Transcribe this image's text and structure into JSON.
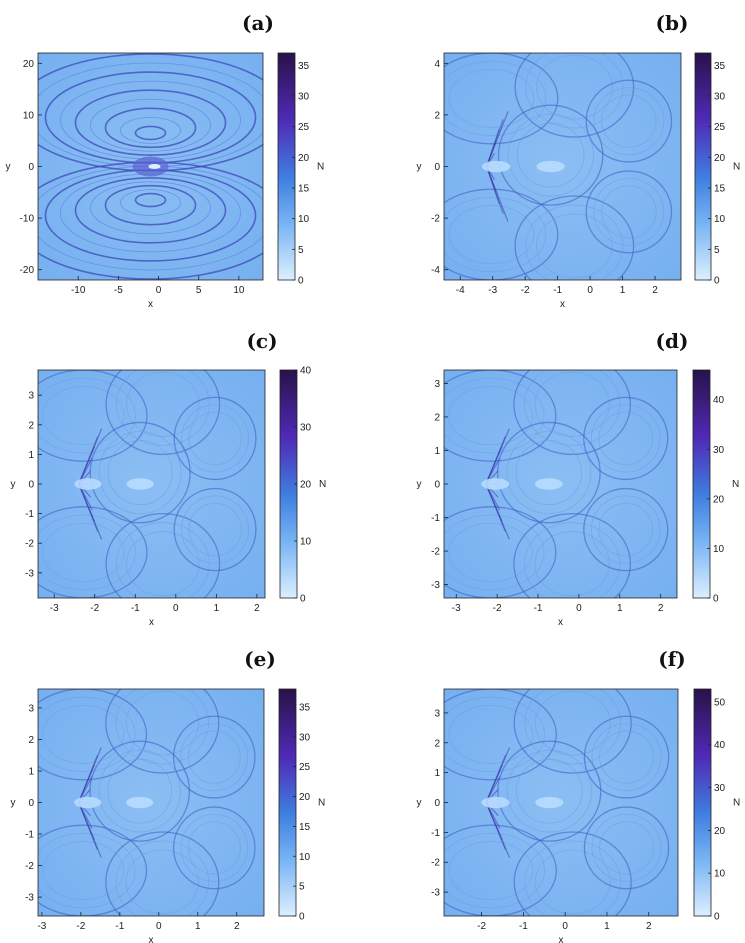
{
  "colors": {
    "cmap_low": "#dcefff",
    "cmap_mid": "#4f94ea",
    "cmap_high": "#28124a",
    "background_field": "#7db5f1"
  },
  "chart_data": [
    {
      "label": "(a)",
      "type": "heatmap",
      "xlabel": "x",
      "ylabel": "y",
      "cbar_label": "N",
      "xlim": [
        -15,
        13
      ],
      "ylim": [
        -22,
        22
      ],
      "xticks": [
        -10,
        -5,
        0,
        5,
        10
      ],
      "yticks": [
        -20,
        -10,
        0,
        10,
        20
      ],
      "cbar_lim": [
        0,
        37
      ],
      "cbar_ticks": [
        0,
        5,
        10,
        15,
        20,
        25,
        30,
        35
      ]
    },
    {
      "label": "(b)",
      "type": "heatmap",
      "xlabel": "x",
      "ylabel": "y",
      "cbar_label": "N",
      "xlim": [
        -4.5,
        2.8
      ],
      "ylim": [
        -4.4,
        4.4
      ],
      "xticks": [
        -4,
        -3,
        -2,
        -1,
        0,
        1,
        2
      ],
      "yticks": [
        -4,
        -2,
        0,
        2,
        4
      ],
      "cbar_lim": [
        0,
        37
      ],
      "cbar_ticks": [
        0,
        5,
        10,
        15,
        20,
        25,
        30,
        35
      ]
    },
    {
      "label": "(c)",
      "type": "heatmap",
      "xlabel": "x",
      "ylabel": "y",
      "cbar_label": "N",
      "xlim": [
        -3.4,
        2.2
      ],
      "ylim": [
        -3.85,
        3.85
      ],
      "xticks": [
        -3,
        -2,
        -1,
        0,
        1,
        2
      ],
      "yticks": [
        -3,
        -2,
        -1,
        0,
        1,
        2,
        3
      ],
      "cbar_lim": [
        0,
        40
      ],
      "cbar_ticks": [
        0,
        10,
        20,
        30,
        40
      ]
    },
    {
      "label": "(d)",
      "type": "heatmap",
      "xlabel": "x",
      "ylabel": "y",
      "cbar_label": "N",
      "xlim": [
        -3.3,
        2.4
      ],
      "ylim": [
        -3.4,
        3.4
      ],
      "xticks": [
        -3,
        -2,
        -1,
        0,
        1,
        2
      ],
      "yticks": [
        -3,
        -2,
        -1,
        0,
        1,
        2,
        3
      ],
      "cbar_lim": [
        0,
        46
      ],
      "cbar_ticks": [
        0,
        10,
        20,
        30,
        40
      ]
    },
    {
      "label": "(e)",
      "type": "heatmap",
      "xlabel": "x",
      "ylabel": "y",
      "cbar_label": "N",
      "xlim": [
        -3.1,
        2.7
      ],
      "ylim": [
        -3.6,
        3.6
      ],
      "xticks": [
        -3,
        -2,
        -1,
        0,
        1,
        2
      ],
      "yticks": [
        -3,
        -2,
        -1,
        0,
        1,
        2,
        3
      ],
      "cbar_lim": [
        0,
        38
      ],
      "cbar_ticks": [
        0,
        5,
        10,
        15,
        20,
        25,
        30,
        35
      ]
    },
    {
      "label": "(f)",
      "type": "heatmap",
      "xlabel": "x",
      "ylabel": "y",
      "cbar_label": "N",
      "xlim": [
        -2.9,
        2.7
      ],
      "ylim": [
        -3.8,
        3.8
      ],
      "xticks": [
        -2,
        -1,
        0,
        1,
        2
      ],
      "yticks": [
        -3,
        -2,
        -1,
        0,
        1,
        2,
        3
      ],
      "cbar_lim": [
        0,
        53
      ],
      "cbar_ticks": [
        0,
        10,
        20,
        30,
        40,
        50
      ]
    }
  ]
}
